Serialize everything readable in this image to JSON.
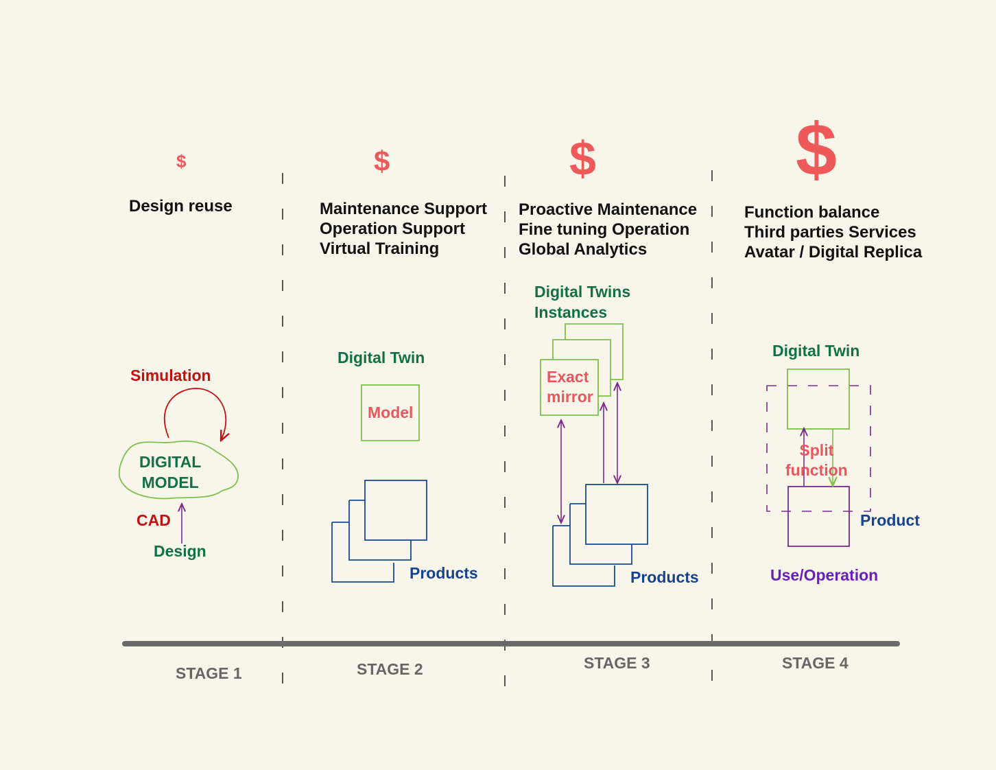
{
  "colors": {
    "background": "#f8f5ea",
    "dollar": "#ee5a5a",
    "green_label": "#127048",
    "red_label": "#c01010",
    "salmon_label": "#e8575b",
    "navy_label": "#16438e",
    "purple_label": "#6a1fb8",
    "green_box": "#7dc04b",
    "navy_box": "#1a4a8c",
    "purple_line": "#7a2a8a",
    "timeline": "#6a6a6a"
  },
  "stages": [
    {
      "dollar": "$",
      "description": "Design reuse",
      "label": "STAGE 1",
      "diagram": {
        "loop_label": "Simulation",
        "cloud_label": "DIGITAL\nMODEL",
        "cad_label": "CAD",
        "design_label": "Design"
      }
    },
    {
      "dollar": "$",
      "description": "Maintenance Support\nOperation Support\nVirtual Training",
      "label": "STAGE 2",
      "diagram": {
        "twin_label": "Digital Twin",
        "model_label": "Model",
        "products_label": "Products"
      }
    },
    {
      "dollar": "$",
      "description": "Proactive Maintenance\nFine tuning Operation\nGlobal Analytics",
      "label": "STAGE 3",
      "diagram": {
        "instances_label": "Digital Twins\nInstances",
        "mirror_label": "Exact\nmirror",
        "products_label": "Products"
      }
    },
    {
      "dollar": "$",
      "description": "Function balance\nThird parties Services\nAvatar / Digital Replica",
      "label": "STAGE 4",
      "diagram": {
        "twin_label": "Digital Twin",
        "split_label": "Split\nfunction",
        "product_label": "Product",
        "use_label": "Use/Operation"
      }
    }
  ]
}
